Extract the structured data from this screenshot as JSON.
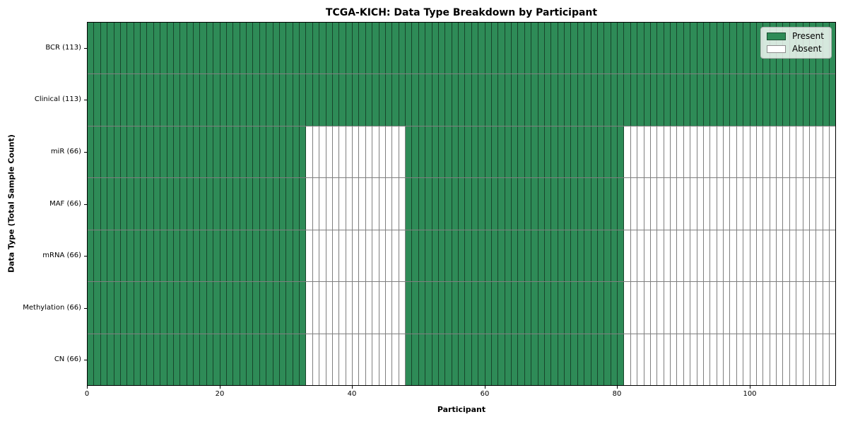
{
  "chart_data": {
    "type": "heatmap",
    "title": "TCGA-KICH: Data Type Breakdown by Participant",
    "xlabel": "Participant",
    "ylabel": "Data Type (Total Sample Count)",
    "n_participants": 113,
    "xlim": [
      0,
      113
    ],
    "x_ticks": [
      0,
      20,
      40,
      60,
      80,
      100
    ],
    "rows": [
      {
        "label": "BCR (113)",
        "total": 113,
        "present_ranges": [
          [
            0,
            113
          ]
        ]
      },
      {
        "label": "Clinical (113)",
        "total": 113,
        "present_ranges": [
          [
            0,
            113
          ]
        ]
      },
      {
        "label": "miR (66)",
        "total": 66,
        "present_ranges": [
          [
            0,
            33
          ],
          [
            48,
            81
          ]
        ]
      },
      {
        "label": "MAF (66)",
        "total": 66,
        "present_ranges": [
          [
            0,
            33
          ],
          [
            48,
            81
          ]
        ]
      },
      {
        "label": "mRNA (66)",
        "total": 66,
        "present_ranges": [
          [
            0,
            33
          ],
          [
            48,
            81
          ]
        ]
      },
      {
        "label": "Methylation (66)",
        "total": 66,
        "present_ranges": [
          [
            0,
            33
          ],
          [
            48,
            81
          ]
        ]
      },
      {
        "label": "CN (66)",
        "total": 66,
        "present_ranges": [
          [
            0,
            33
          ],
          [
            48,
            81
          ]
        ]
      }
    ],
    "legend": {
      "position": "upper right",
      "entries": [
        {
          "label": "Present",
          "color": "#2e8b57"
        },
        {
          "label": "Absent",
          "color": "#ffffff"
        }
      ]
    },
    "colors": {
      "present": "#2e8b57",
      "absent": "#ffffff",
      "cell_edge": "rgba(0,0,0,0.50)",
      "axis": "#000000"
    },
    "layout": {
      "grid": "cell-edges",
      "legend_visible": true
    }
  }
}
